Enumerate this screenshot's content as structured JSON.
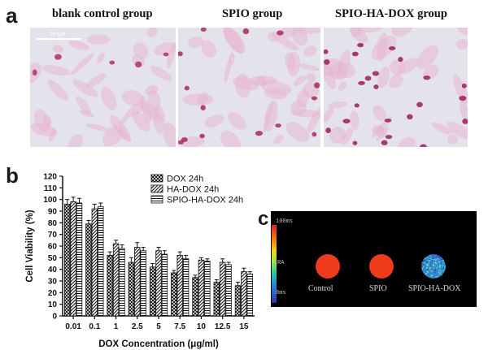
{
  "panel_a": {
    "letter": "a",
    "titles": [
      "blank control group",
      "SPIO group",
      "SPIO-HA-DOX group"
    ],
    "scale_bar_label": "50 μm"
  },
  "panel_b": {
    "letter": "b"
  },
  "panel_c": {
    "letter": "c",
    "colorbar_labels": {
      "top": "100ms",
      "mid": "RA",
      "bottom": "0ms"
    },
    "well_labels": [
      "Control",
      "SPIO",
      "SPIO-HA-DOX"
    ],
    "colors": {
      "control": "#ee3a1e",
      "spio": "#ef3a1c",
      "spio_ha_dox": "#3a7fd0"
    }
  },
  "chart_data": {
    "type": "bar",
    "xlabel": "DOX Concentration (μg/ml)",
    "ylabel": "Cell Viability (%)",
    "ylim": [
      0,
      120
    ],
    "yticks": [
      0,
      10,
      20,
      30,
      40,
      50,
      60,
      70,
      80,
      90,
      100,
      110,
      120
    ],
    "categories": [
      "0.01",
      "0.1",
      "1",
      "2.5",
      "5",
      "7.5",
      "10",
      "12.5",
      "15"
    ],
    "legend_position": "top-right",
    "grid": false,
    "series": [
      {
        "name": "DOX 24h",
        "pattern": "crosshatch",
        "values": [
          96,
          79,
          52,
          46,
          42,
          37,
          33,
          29,
          26
        ],
        "errors": [
          4,
          3,
          3,
          4,
          3,
          2,
          2,
          2,
          3
        ]
      },
      {
        "name": "HA-DOX 24h",
        "pattern": "diagonal",
        "values": [
          98,
          92,
          62,
          59,
          56,
          52,
          48,
          46,
          38
        ],
        "errors": [
          4,
          4,
          3,
          4,
          3,
          3,
          2,
          3,
          3
        ]
      },
      {
        "name": "SPIO-HA-DOX 24h",
        "pattern": "horizontal",
        "values": [
          97,
          94,
          58,
          56,
          53,
          49,
          47,
          44,
          36
        ],
        "errors": [
          4,
          3,
          3,
          3,
          3,
          3,
          2,
          2,
          2
        ]
      }
    ]
  }
}
